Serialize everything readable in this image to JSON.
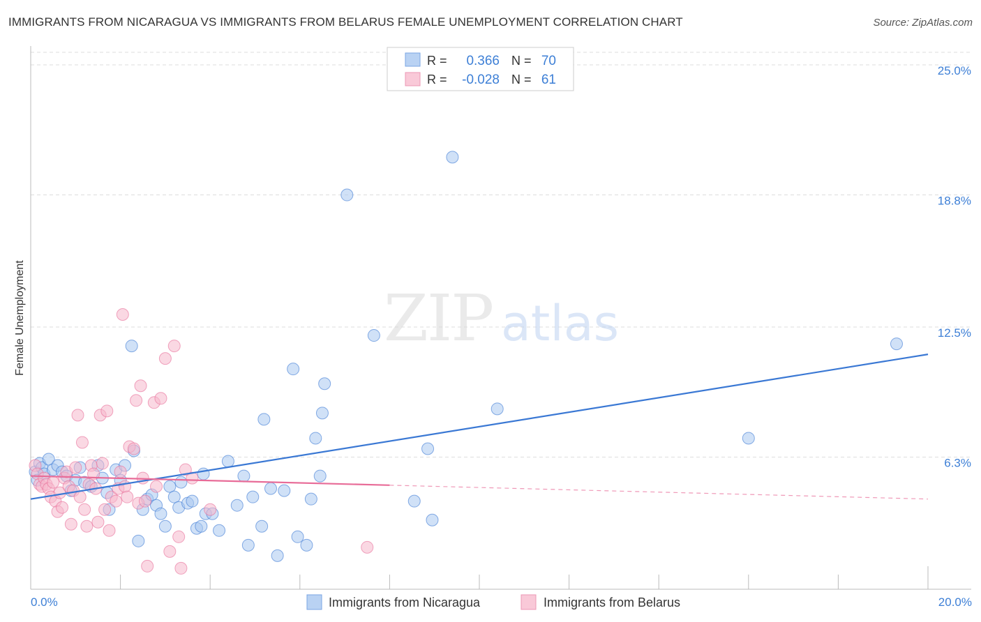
{
  "title": "IMMIGRANTS FROM NICARAGUA VS IMMIGRANTS FROM BELARUS FEMALE UNEMPLOYMENT CORRELATION CHART",
  "source": "Source: ZipAtlas.com",
  "watermark": {
    "zip": "ZIP",
    "atlas": "atlas"
  },
  "colors": {
    "blue": "#3a78d4",
    "blue_fill": "#a9c8f0",
    "pink": "#e86c98",
    "pink_fill": "#f5b8cc",
    "tick": "#3d7fd6",
    "grid": "#dddddd"
  },
  "stats": [
    {
      "r_label": "R =",
      "r": "0.366",
      "n_label": "N =",
      "n": "70"
    },
    {
      "r_label": "R =",
      "r": "-0.028",
      "n_label": "N =",
      "n": "61"
    }
  ],
  "chart_data": {
    "type": "scatter",
    "title": "IMMIGRANTS FROM NICARAGUA VS IMMIGRANTS FROM BELARUS FEMALE UNEMPLOYMENT CORRELATION CHART",
    "xlabel": "",
    "ylabel": "Female Unemployment",
    "xlim": [
      0,
      20
    ],
    "ylim": [
      0,
      25.6
    ],
    "x_tick_labels": [
      "0.0%",
      "20.0%"
    ],
    "y_ticks": [
      6.3,
      12.5,
      18.8,
      25.0
    ],
    "y_tick_labels": [
      "6.3%",
      "12.5%",
      "18.8%",
      "25.0%"
    ],
    "x_minor_ticks": [
      2,
      4,
      6,
      8,
      10,
      12,
      14,
      16,
      18
    ],
    "grid": true,
    "legend_position": "bottom",
    "series": [
      {
        "name": "Immigrants from Nicaragua",
        "color": "#3a78d4",
        "trend": {
          "x0": 0,
          "y0": 4.3,
          "x1": 20,
          "y1": 11.2,
          "solid_to": 20
        },
        "points": [
          [
            0.1,
            5.6
          ],
          [
            0.15,
            5.2
          ],
          [
            0.2,
            6.0
          ],
          [
            0.25,
            5.8
          ],
          [
            0.3,
            5.5
          ],
          [
            0.4,
            6.2
          ],
          [
            0.5,
            5.7
          ],
          [
            0.6,
            5.9
          ],
          [
            0.7,
            5.6
          ],
          [
            0.8,
            5.4
          ],
          [
            0.9,
            4.7
          ],
          [
            1.0,
            5.2
          ],
          [
            1.1,
            5.8
          ],
          [
            1.2,
            5.1
          ],
          [
            1.35,
            4.9
          ],
          [
            1.5,
            5.9
          ],
          [
            1.6,
            5.3
          ],
          [
            1.7,
            4.6
          ],
          [
            1.75,
            3.8
          ],
          [
            1.9,
            5.7
          ],
          [
            2.0,
            5.2
          ],
          [
            2.1,
            5.9
          ],
          [
            2.25,
            11.6
          ],
          [
            2.3,
            6.6
          ],
          [
            2.4,
            2.3
          ],
          [
            2.5,
            3.8
          ],
          [
            2.6,
            4.3
          ],
          [
            2.7,
            4.5
          ],
          [
            2.8,
            4.0
          ],
          [
            2.9,
            3.6
          ],
          [
            3.0,
            3.0
          ],
          [
            3.1,
            4.9
          ],
          [
            3.2,
            4.4
          ],
          [
            3.3,
            3.9
          ],
          [
            3.35,
            5.1
          ],
          [
            3.5,
            4.1
          ],
          [
            3.6,
            4.2
          ],
          [
            3.7,
            2.9
          ],
          [
            3.8,
            3.0
          ],
          [
            3.85,
            5.5
          ],
          [
            3.9,
            3.6
          ],
          [
            4.05,
            3.6
          ],
          [
            4.2,
            2.8
          ],
          [
            4.4,
            6.1
          ],
          [
            4.6,
            4.0
          ],
          [
            4.75,
            5.4
          ],
          [
            4.85,
            2.1
          ],
          [
            4.95,
            4.4
          ],
          [
            5.15,
            3.0
          ],
          [
            5.2,
            8.1
          ],
          [
            5.35,
            4.8
          ],
          [
            5.5,
            1.6
          ],
          [
            5.65,
            4.7
          ],
          [
            5.85,
            10.5
          ],
          [
            5.95,
            2.5
          ],
          [
            6.15,
            2.1
          ],
          [
            6.25,
            4.3
          ],
          [
            6.35,
            7.2
          ],
          [
            6.45,
            5.4
          ],
          [
            6.5,
            8.4
          ],
          [
            6.55,
            9.8
          ],
          [
            7.05,
            18.8
          ],
          [
            7.65,
            12.1
          ],
          [
            8.55,
            4.2
          ],
          [
            8.85,
            6.7
          ],
          [
            8.95,
            3.3
          ],
          [
            9.4,
            20.6
          ],
          [
            10.4,
            8.6
          ],
          [
            16.0,
            7.2
          ],
          [
            19.3,
            11.7
          ]
        ]
      },
      {
        "name": "Immigrants from Belarus",
        "color": "#e86c98",
        "trend": {
          "x0": 0,
          "y0": 5.4,
          "x1": 20,
          "y1": 4.3,
          "solid_to": 8.0
        },
        "points": [
          [
            0.1,
            5.9
          ],
          [
            0.15,
            5.5
          ],
          [
            0.2,
            5.0
          ],
          [
            0.25,
            4.9
          ],
          [
            0.3,
            5.3
          ],
          [
            0.35,
            5.0
          ],
          [
            0.4,
            4.8
          ],
          [
            0.45,
            4.4
          ],
          [
            0.5,
            5.1
          ],
          [
            0.55,
            4.2
          ],
          [
            0.6,
            3.7
          ],
          [
            0.65,
            4.6
          ],
          [
            0.7,
            3.9
          ],
          [
            0.75,
            5.3
          ],
          [
            0.8,
            5.6
          ],
          [
            0.85,
            4.9
          ],
          [
            0.9,
            3.1
          ],
          [
            0.95,
            4.7
          ],
          [
            1.0,
            5.8
          ],
          [
            1.05,
            8.3
          ],
          [
            1.1,
            4.4
          ],
          [
            1.15,
            7.0
          ],
          [
            1.2,
            3.8
          ],
          [
            1.25,
            3.0
          ],
          [
            1.3,
            5.0
          ],
          [
            1.35,
            5.9
          ],
          [
            1.4,
            5.5
          ],
          [
            1.45,
            4.8
          ],
          [
            1.5,
            3.2
          ],
          [
            1.55,
            8.3
          ],
          [
            1.6,
            6.0
          ],
          [
            1.65,
            3.8
          ],
          [
            1.7,
            8.5
          ],
          [
            1.75,
            2.8
          ],
          [
            1.8,
            4.4
          ],
          [
            1.9,
            4.2
          ],
          [
            1.95,
            4.8
          ],
          [
            2.0,
            5.6
          ],
          [
            2.05,
            13.1
          ],
          [
            2.1,
            4.9
          ],
          [
            2.15,
            4.4
          ],
          [
            2.2,
            6.8
          ],
          [
            2.3,
            6.7
          ],
          [
            2.35,
            9.0
          ],
          [
            2.4,
            4.1
          ],
          [
            2.45,
            9.7
          ],
          [
            2.5,
            5.3
          ],
          [
            2.55,
            4.2
          ],
          [
            2.6,
            1.1
          ],
          [
            2.75,
            8.9
          ],
          [
            2.8,
            4.9
          ],
          [
            2.9,
            9.1
          ],
          [
            3.0,
            11.0
          ],
          [
            3.1,
            1.8
          ],
          [
            3.2,
            11.6
          ],
          [
            3.3,
            2.5
          ],
          [
            3.35,
            1.0
          ],
          [
            3.45,
            5.7
          ],
          [
            3.6,
            5.3
          ],
          [
            4.0,
            3.8
          ],
          [
            7.5,
            2.0
          ]
        ]
      }
    ]
  }
}
